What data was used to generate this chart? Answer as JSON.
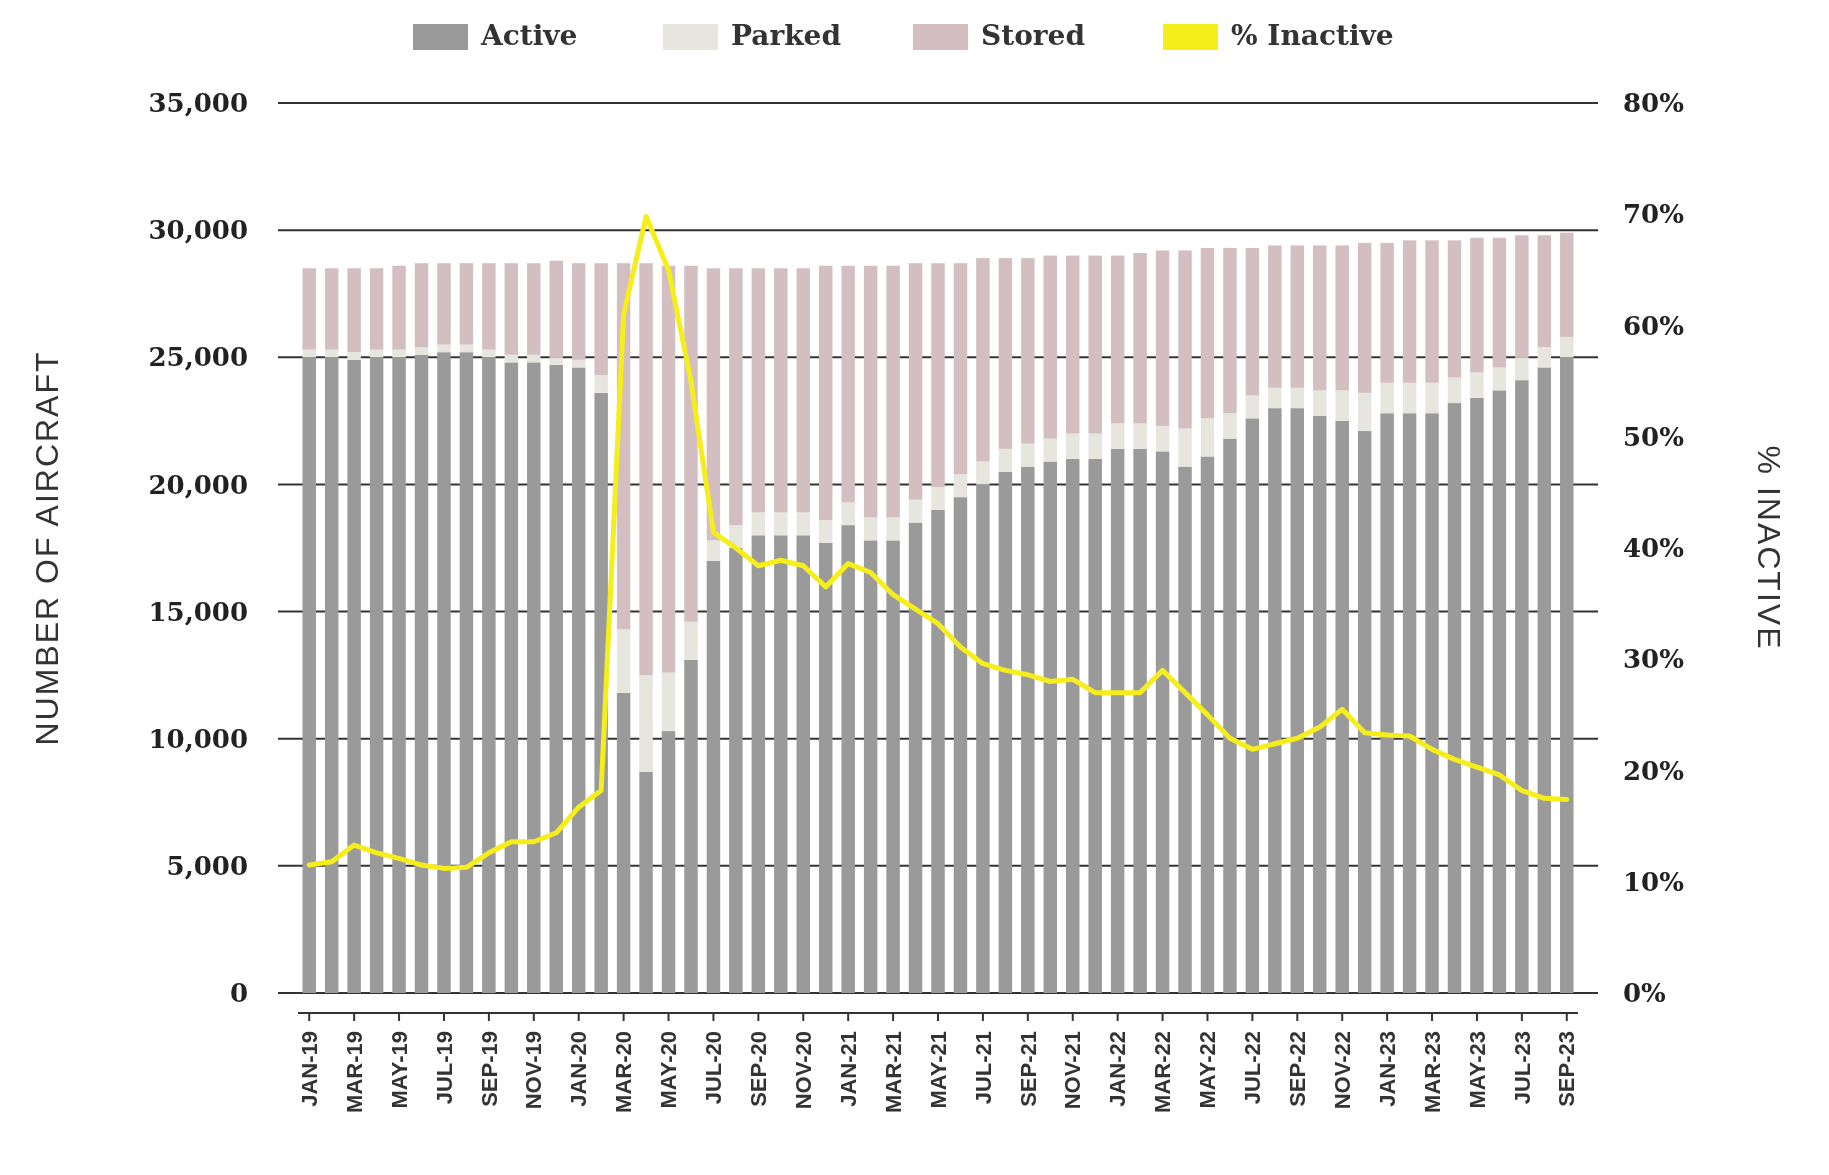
{
  "chart_data": {
    "type": "bar",
    "stacked": true,
    "ylabel": "NUMBER OF AIRCRAFT",
    "y2label": "% INACTIVE",
    "categories": [
      "JAN-19",
      null,
      "MAR-19",
      null,
      "MAY-19",
      null,
      "JUL-19",
      null,
      "SEP-19",
      null,
      "NOV-19",
      null,
      "JAN-20",
      null,
      "MAR-20",
      null,
      "MAY-20",
      null,
      "JUL-20",
      null,
      "SEP-20",
      null,
      "NOV-20",
      null,
      "JAN-21",
      null,
      "MAR-21",
      null,
      "MAY-21",
      null,
      "JUL-21",
      null,
      "SEP-21",
      null,
      "NOV-21",
      null,
      "JAN-22",
      null,
      "MAR-22",
      null,
      "MAY-22",
      null,
      "JUL-22",
      null,
      "SEP-22",
      null,
      "NOV-22",
      null,
      "JAN-23",
      null,
      "MAR-23",
      null,
      "MAY-23",
      null,
      "JUL-23",
      null,
      "SEP-23"
    ],
    "series": [
      {
        "name": "Active",
        "color": "#9a9a9a",
        "values": [
          25000,
          25000,
          24900,
          25000,
          25000,
          25100,
          25200,
          25200,
          25000,
          24800,
          24800,
          24700,
          24600,
          23600,
          11800,
          8700,
          10300,
          13100,
          17000,
          17500,
          18000,
          18000,
          18000,
          17700,
          18400,
          17800,
          17800,
          18500,
          19000,
          19500,
          20000,
          20500,
          20700,
          20900,
          21000,
          21000,
          21400,
          21400,
          21300,
          20700,
          21100,
          21800,
          22600,
          23000,
          23000,
          22700,
          22500,
          22100,
          22800,
          22800,
          22800,
          23200,
          23400,
          23700,
          24100,
          24600,
          25000
        ]
      },
      {
        "name": "Parked",
        "color": "#e6e6de",
        "values": [
          300,
          300,
          300,
          300,
          300,
          300,
          300,
          300,
          300,
          300,
          300,
          300,
          300,
          700,
          2500,
          3800,
          2300,
          1500,
          800,
          900,
          900,
          900,
          900,
          900,
          900,
          900,
          900,
          900,
          900,
          900,
          900,
          900,
          900,
          900,
          1000,
          1000,
          1000,
          1000,
          1000,
          1500,
          1500,
          1000,
          900,
          800,
          800,
          1000,
          1200,
          1500,
          1200,
          1200,
          1200,
          1000,
          1000,
          900,
          900,
          800,
          800
        ]
      },
      {
        "name": "Stored",
        "color": "#d3bfc1",
        "values": [
          3200,
          3200,
          3300,
          3200,
          3300,
          3300,
          3200,
          3200,
          3400,
          3600,
          3600,
          3800,
          3800,
          4400,
          14400,
          16200,
          16000,
          14000,
          10700,
          10100,
          9600,
          9600,
          9600,
          10000,
          9300,
          9900,
          9900,
          9300,
          8800,
          8300,
          8000,
          7500,
          7300,
          7200,
          7000,
          7000,
          6600,
          6700,
          6900,
          7000,
          6700,
          6500,
          5800,
          5600,
          5600,
          5700,
          5700,
          5900,
          5500,
          5600,
          5600,
          5400,
          5300,
          5100,
          4800,
          4400,
          4100
        ]
      },
      {
        "name": "% Inactive",
        "type": "line",
        "axis": "y2",
        "color": "#f5ee1a",
        "values": [
          11.5,
          11.8,
          13.3,
          12.6,
          12.1,
          11.5,
          11.2,
          11.3,
          12.6,
          13.6,
          13.6,
          14.4,
          16.7,
          18.2,
          61,
          69.8,
          65,
          55,
          41.4,
          40,
          38.4,
          38.9,
          38.4,
          36.5,
          38.6,
          37.8,
          35.8,
          34.5,
          33.2,
          31.1,
          29.6,
          29,
          28.6,
          28,
          28.2,
          27,
          27,
          27,
          29,
          27,
          25,
          22.9,
          21.9,
          22.4,
          22.9,
          23.9,
          25.5,
          23.4,
          23.2,
          23.1,
          21.9,
          21,
          20.3,
          19.6,
          18.2,
          17.5,
          17.4
        ]
      }
    ],
    "ylim": [
      0,
      35000
    ],
    "yticks": [
      {
        "value": 0,
        "label": "0"
      },
      {
        "value": 5000,
        "label": "5,000"
      },
      {
        "value": 10000,
        "label": "10,000"
      },
      {
        "value": 15000,
        "label": "15,000"
      },
      {
        "value": 20000,
        "label": "20,000"
      },
      {
        "value": 25000,
        "label": "25,000"
      },
      {
        "value": 30000,
        "label": "30,000"
      },
      {
        "value": 35000,
        "label": "35,000"
      }
    ],
    "y2lim": [
      0,
      80
    ],
    "y2ticks": [
      {
        "value": 0,
        "label": "0%"
      },
      {
        "value": 10,
        "label": "10%"
      },
      {
        "value": 20,
        "label": "20%"
      },
      {
        "value": 30,
        "label": "30%"
      },
      {
        "value": 40,
        "label": "40%"
      },
      {
        "value": 50,
        "label": "50%"
      },
      {
        "value": 60,
        "label": "60%"
      },
      {
        "value": 70,
        "label": "70%"
      },
      {
        "value": 80,
        "label": "80%"
      }
    ],
    "grid": "y",
    "legend": "top"
  }
}
